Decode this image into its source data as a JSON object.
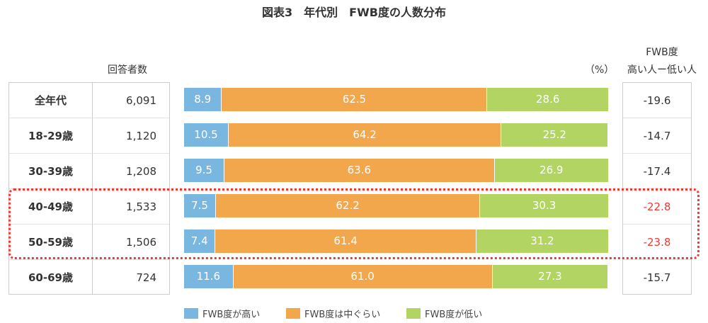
{
  "chart_data": {
    "type": "bar",
    "orientation": "horizontal",
    "stacked": true,
    "title": "図表3　年代別　FWB度の人数分布",
    "unit_label": "（%）",
    "count_header": "回答者数",
    "diff_header": [
      "FWB度",
      "高い人ー低い人"
    ],
    "categories": [
      "全年代",
      "18-29歳",
      "30-39歳",
      "40-49歳",
      "50-59歳",
      "60-69歳"
    ],
    "counts": [
      "6,091",
      "1,120",
      "1,208",
      "1,533",
      "1,506",
      "724"
    ],
    "series": [
      {
        "name": "FWB度が高い",
        "color": "#7ab7e0",
        "values": [
          8.9,
          10.5,
          9.5,
          7.5,
          7.4,
          11.6
        ]
      },
      {
        "name": "FWB度は中ぐらい",
        "color": "#f2a74c",
        "values": [
          62.5,
          64.2,
          63.6,
          62.2,
          61.4,
          61.0
        ]
      },
      {
        "name": "FWB度が低い",
        "color": "#b1d462",
        "values": [
          28.6,
          25.2,
          26.9,
          30.3,
          31.2,
          27.3
        ]
      }
    ],
    "value_labels": [
      [
        "8.9",
        "62.5",
        "28.6"
      ],
      [
        "10.5",
        "64.2",
        "25.2"
      ],
      [
        "9.5",
        "63.6",
        "26.9"
      ],
      [
        "7.5",
        "62.2",
        "30.3"
      ],
      [
        "7.4",
        "61.4",
        "31.2"
      ],
      [
        "11.6",
        "61.0",
        "27.3"
      ]
    ],
    "diff": [
      "-19.6",
      "-14.7",
      "-17.4",
      "-22.8",
      "-23.8",
      "-15.7"
    ],
    "highlighted_categories": [
      "40-49歳",
      "50-59歳"
    ],
    "highlight_color": "#ee3a33",
    "xlim": [
      0,
      100
    ],
    "legend_position": "bottom"
  }
}
